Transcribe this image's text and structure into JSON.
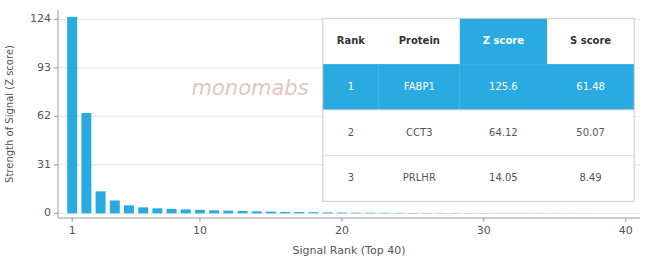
{
  "chart_data": {
    "type": "bar",
    "xlabel": "Signal Rank (Top 40)",
    "ylabel": "Strength of Signal (Z score)",
    "color": "#29abe2",
    "x": [
      1,
      2,
      3,
      4,
      5,
      6,
      7,
      8,
      9,
      10,
      11,
      12,
      13,
      14,
      15,
      16,
      17,
      18,
      19,
      20,
      21,
      22,
      23,
      24,
      25,
      26,
      27,
      28,
      29,
      30,
      31,
      32,
      33,
      34,
      35,
      36,
      37,
      38,
      39,
      40
    ],
    "values": [
      125.6,
      64.12,
      14.05,
      8.2,
      5.1,
      3.8,
      3.2,
      2.8,
      2.5,
      2.2,
      1.9,
      1.7,
      1.5,
      1.3,
      1.1,
      0.9,
      0.8,
      0.7,
      0.6,
      0.5,
      0.4,
      0.35,
      0.3,
      0.25,
      0.2,
      0.18,
      0.16,
      0.14,
      0.12,
      0.1,
      0.08,
      0.07,
      0.06,
      0.05,
      0.04,
      0.03,
      0.02,
      0.01,
      0.005,
      0.001
    ],
    "xlim": [
      0,
      41
    ],
    "xticks": [
      1,
      10,
      20,
      30,
      40
    ],
    "ylim": [
      -3,
      130
    ],
    "yticks": [
      0,
      31,
      62,
      93,
      124
    ],
    "grid": true,
    "annotations": [
      {
        "text": "monomabs",
        "color": "#e0b8b8"
      }
    ],
    "table": {
      "headers": [
        "Rank",
        "Protein",
        "Z score",
        "S score"
      ],
      "rows": [
        [
          "1",
          "FABP1",
          "125.6",
          "61.48"
        ],
        [
          "2",
          "CCT3",
          "64.12",
          "50.07"
        ],
        [
          "3",
          "PRLHR",
          "14.05",
          "8.49"
        ]
      ]
    }
  }
}
